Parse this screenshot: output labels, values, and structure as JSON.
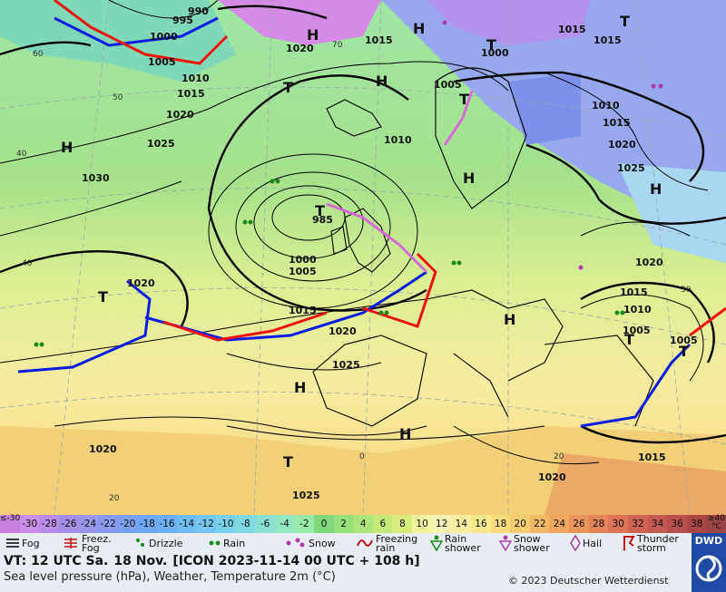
{
  "map": {
    "pressure_labels": [
      "1000",
      "995",
      "990",
      "1005",
      "1010",
      "1015",
      "1020",
      "1030",
      "1025",
      "985",
      "1000",
      "1005",
      "1015",
      "1020",
      "1015",
      "1010",
      "1000",
      "1005",
      "1010",
      "1015",
      "1020",
      "1025",
      "1020",
      "1015",
      "1010",
      "1005",
      "1020",
      "1025",
      "1015",
      "1020",
      "1020",
      "1025",
      "1020",
      "1015",
      "1005",
      "1015"
    ],
    "pressure_centers": [
      "H",
      "T",
      "H",
      "H",
      "T",
      "H",
      "T",
      "H",
      "T",
      "H",
      "T",
      "H",
      "H",
      "H",
      "T",
      "T",
      "T",
      "T"
    ],
    "graticule_labels": [
      "40",
      "50",
      "60",
      "70",
      "40",
      "30",
      "20",
      "0",
      "20"
    ]
  },
  "temperature_scale": {
    "values": [
      "≤-30",
      "-30",
      "-28",
      "-26",
      "-24",
      "-22",
      "-20",
      "-18",
      "-16",
      "-14",
      "-12",
      "-10",
      "-8",
      "-6",
      "-4",
      "-2",
      "0",
      "2",
      "4",
      "6",
      "8",
      "10",
      "12",
      "14",
      "16",
      "18",
      "20",
      "22",
      "24",
      "26",
      "28",
      "30",
      "32",
      "34",
      "36",
      "38",
      "≥40 °C"
    ],
    "colors": [
      "#c97fe0",
      "#c98fe8",
      "#b88ee8",
      "#a58ee8",
      "#9a96ee",
      "#8a99ee",
      "#7aa0f0",
      "#6fa8f2",
      "#6ab0f2",
      "#6fbcf2",
      "#74c6f0",
      "#79d0ea",
      "#80d8e0",
      "#8ae0d2",
      "#93e6c2",
      "#9aeaae",
      "#7ed87a",
      "#96e07a",
      "#aee47a",
      "#c4e87a",
      "#d8ec7e",
      "#f2f4a0",
      "#f6f4b4",
      "#f8f0a0",
      "#f8e88a",
      "#f8dc7a",
      "#f6cc6e",
      "#f2b866",
      "#eea660",
      "#ea945c",
      "#e48258",
      "#dc7256",
      "#d06454",
      "#c45852",
      "#b84e4e",
      "#ac4646",
      "#9c4444"
    ]
  },
  "legend": {
    "fog": "Fog",
    "freezing_fog": "Freez.\nFog",
    "drizzle": "Drizzle",
    "rain": "Rain",
    "snow": "Snow",
    "freezing_rain": "Freezing\nrain",
    "rain_shower": "Rain\nshower",
    "snow_shower": "Snow\nshower",
    "hail": "Hail",
    "thunderstorm": "Thunder\nstorm"
  },
  "info": {
    "valid_time": "VT: 12 UTC Sa.",
    "date": "18 Nov.",
    "run": "[ICON 2023-11-14  00 UTC + 108 h]",
    "subtitle": "Sea level pressure (hPa), Weather, Temperature 2m (°C)",
    "copyright": "© 2023 Deutscher Wetterdienst",
    "logo": "DWD"
  }
}
